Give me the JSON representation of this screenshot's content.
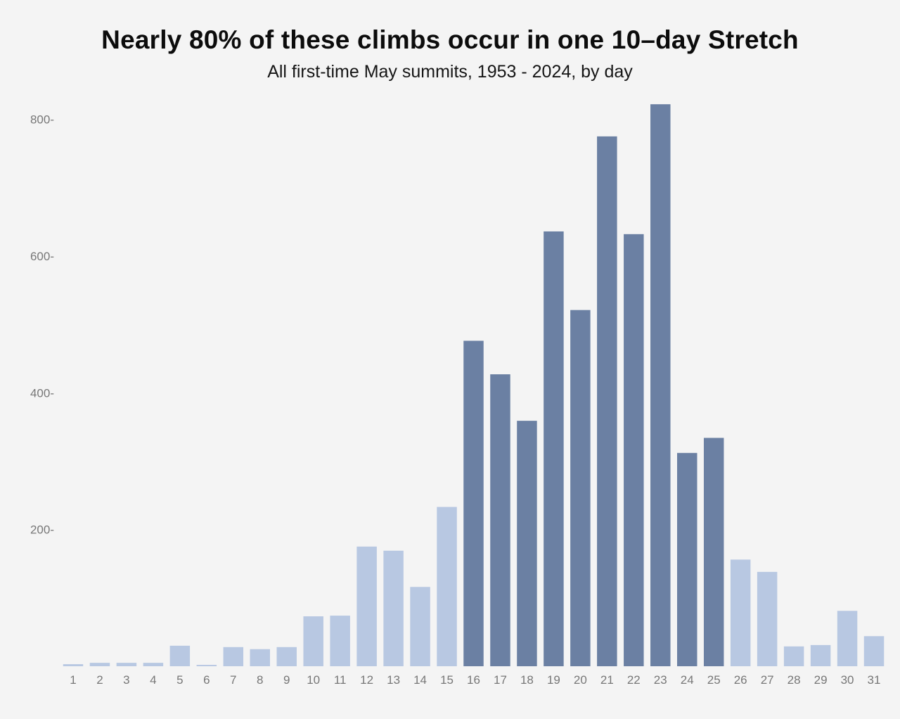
{
  "chart_data": {
    "type": "bar",
    "title": "Nearly 80% of these climbs occur in one 10–day Stretch",
    "subtitle": "All first-time May summits, 1953 - 2024, by day",
    "xlabel": "",
    "ylabel": "",
    "categories": [
      "1",
      "2",
      "3",
      "4",
      "5",
      "6",
      "7",
      "8",
      "9",
      "10",
      "11",
      "12",
      "13",
      "14",
      "15",
      "16",
      "17",
      "18",
      "19",
      "20",
      "21",
      "22",
      "23",
      "24",
      "25",
      "26",
      "27",
      "28",
      "29",
      "30",
      "31"
    ],
    "values": [
      3,
      5,
      5,
      5,
      30,
      2,
      28,
      25,
      28,
      73,
      74,
      175,
      169,
      116,
      233,
      476,
      427,
      359,
      636,
      521,
      775,
      632,
      822,
      312,
      334,
      156,
      138,
      29,
      31,
      81,
      44
    ],
    "highlight_range": [
      "16",
      "25"
    ],
    "ylim": [
      0,
      822
    ],
    "yticks": [
      200,
      400,
      600,
      800
    ],
    "ytick_labels": [
      "200-",
      "400-",
      "600-",
      "800-"
    ],
    "grid": false,
    "colors": {
      "default": "#b8c8e2",
      "highlight": "#6b80a3",
      "background": "#f4f4f4",
      "axis_text": "#777777"
    }
  }
}
